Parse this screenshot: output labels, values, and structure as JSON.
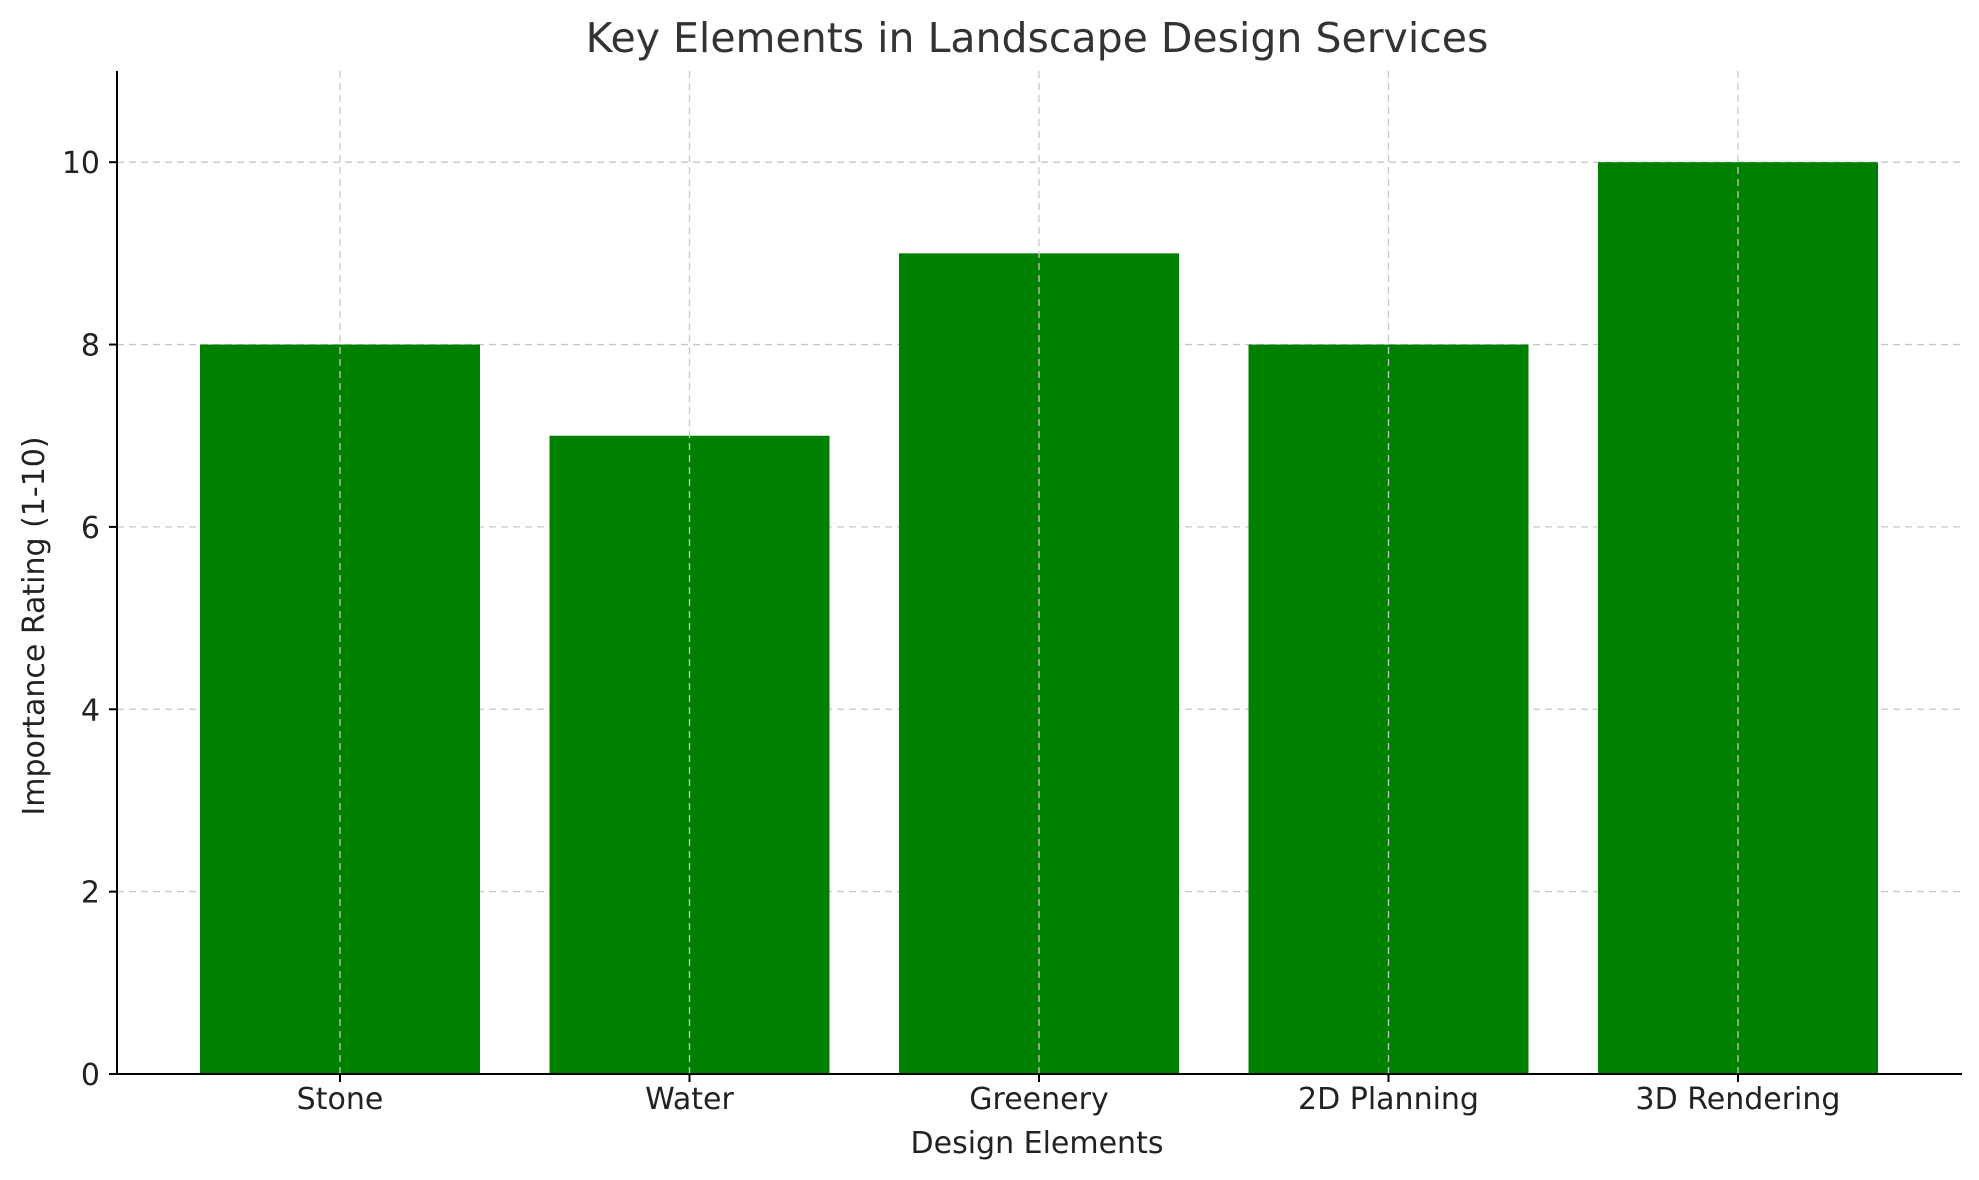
{
  "chart_data": {
    "type": "bar",
    "title": "Key Elements in Landscape Design Services",
    "xlabel": "Design Elements",
    "ylabel": "Importance Rating (1-10)",
    "categories": [
      "Stone",
      "Water",
      "Greenery",
      "2D Planning",
      "3D Rendering"
    ],
    "values": [
      8,
      7,
      9,
      8,
      10
    ],
    "ylim": [
      0,
      11
    ],
    "yticks": [
      0,
      2,
      4,
      6,
      8,
      10
    ],
    "grid": true,
    "bar_color": "#008000"
  }
}
